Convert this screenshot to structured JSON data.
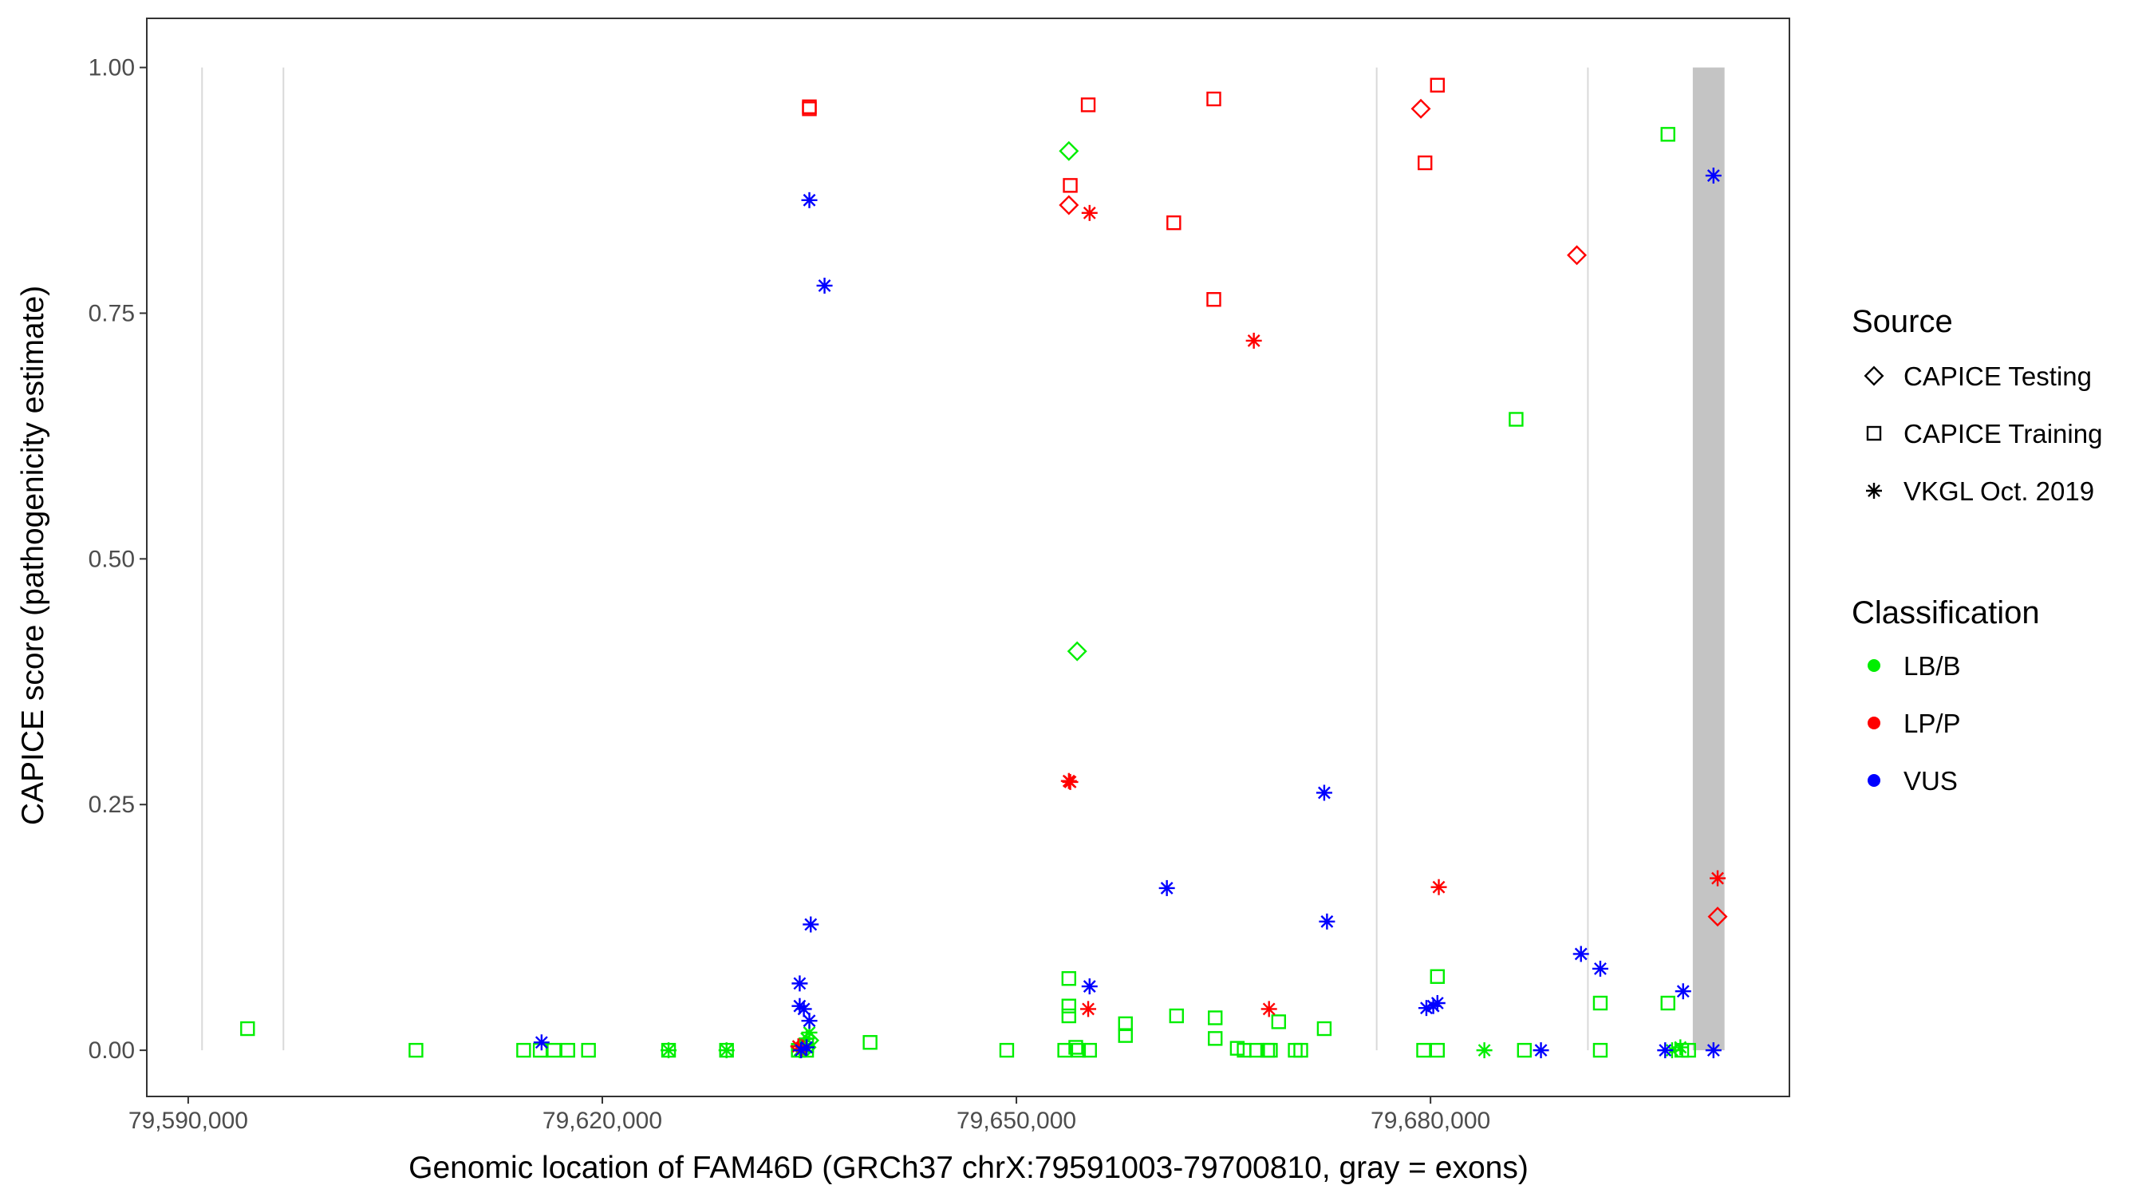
{
  "chart_data": {
    "type": "scatter",
    "title": "",
    "xlabel": "Genomic location of FAM46D (GRCh37 chrX:79591003-79700810, gray = exons)",
    "ylabel": "CAPICE score (pathogenicity estimate)",
    "xlim": [
      79587000,
      79706000
    ],
    "ylim": [
      -0.047,
      1.05
    ],
    "x_ticks": [
      79590000,
      79620000,
      79650000,
      79680000
    ],
    "x_tick_labels": [
      "79,590,000",
      "79,620,000",
      "79,650,000",
      "79,680,000"
    ],
    "y_ticks": [
      0,
      0.25,
      0.5,
      0.75,
      1.0
    ],
    "y_tick_labels": [
      "0.00",
      "0.25",
      "0.50",
      "0.75",
      "1.00"
    ],
    "grid": false,
    "exon_lines": [
      79591003,
      79596900,
      79676100,
      79691400
    ],
    "exon_band": [
      79699000,
      79701300
    ],
    "legend_placement": "right",
    "legend": {
      "source_title": "Source",
      "source_items": [
        {
          "label": "CAPICE Testing",
          "shape": "diamond"
        },
        {
          "label": "CAPICE Training",
          "shape": "square"
        },
        {
          "label": "VKGL Oct. 2019",
          "shape": "asterisk"
        }
      ],
      "classification_title": "Classification",
      "classification_items": [
        {
          "label": "LB/B",
          "color": "#00ee00"
        },
        {
          "label": "LP/P",
          "color": "#ff0000"
        },
        {
          "label": "VUS",
          "color": "#0000ff"
        }
      ]
    },
    "series": [
      {
        "source": "CAPICE Training",
        "classification": "LB/B",
        "points": [
          [
            79594300,
            0.022
          ],
          [
            79606500,
            0.0
          ],
          [
            79614300,
            0.0
          ],
          [
            79615500,
            0.0
          ],
          [
            79616500,
            0.0
          ],
          [
            79617500,
            0.0
          ],
          [
            79619000,
            0.0
          ],
          [
            79624800,
            0.0
          ],
          [
            79629000,
            0.0
          ],
          [
            79634200,
            0.0
          ],
          [
            79634800,
            0.0
          ],
          [
            79634800,
            0.005
          ],
          [
            79639400,
            0.008
          ],
          [
            79649300,
            0.0
          ],
          [
            79653500,
            0.0
          ],
          [
            79653800,
            0.073
          ],
          [
            79653800,
            0.045
          ],
          [
            79653800,
            0.035
          ],
          [
            79654300,
            0.003
          ],
          [
            79654500,
            0.0
          ],
          [
            79655300,
            0.0
          ],
          [
            79657900,
            0.027
          ],
          [
            79657900,
            0.015
          ],
          [
            79661600,
            0.035
          ],
          [
            79664400,
            0.033
          ],
          [
            79664400,
            0.012
          ],
          [
            79666000,
            0.002
          ],
          [
            79666500,
            0.0
          ],
          [
            79667400,
            0.0
          ],
          [
            79668200,
            0.0
          ],
          [
            79668400,
            0.0
          ],
          [
            79669000,
            0.029
          ],
          [
            79670200,
            0.0
          ],
          [
            79670600,
            0.0
          ],
          [
            79672300,
            0.022
          ],
          [
            79679500,
            0.0
          ],
          [
            79680500,
            0.075
          ],
          [
            79680500,
            0.0
          ],
          [
            79686200,
            0.642
          ],
          [
            79686800,
            0.0
          ],
          [
            79692300,
            0.048
          ],
          [
            79692300,
            0.0
          ],
          [
            79697200,
            0.048
          ],
          [
            79697200,
            0.932
          ],
          [
            79698200,
            0.0
          ],
          [
            79698700,
            0.0
          ]
        ]
      },
      {
        "source": "CAPICE Training",
        "classification": "LP/P",
        "points": [
          [
            79635000,
            0.96
          ],
          [
            79635000,
            0.958
          ],
          [
            79653900,
            0.88
          ],
          [
            79655200,
            0.962
          ],
          [
            79661400,
            0.842
          ],
          [
            79664300,
            0.968
          ],
          [
            79664300,
            0.764
          ],
          [
            79679600,
            0.903
          ],
          [
            79680500,
            0.982
          ]
        ]
      },
      {
        "source": "CAPICE Testing",
        "classification": "LB/B",
        "points": [
          [
            79653800,
            0.915
          ],
          [
            79654400,
            0.406
          ],
          [
            79634800,
            0.003
          ],
          [
            79635000,
            0.01
          ]
        ]
      },
      {
        "source": "CAPICE Testing",
        "classification": "LP/P",
        "points": [
          [
            79653800,
            0.86
          ],
          [
            79679300,
            0.958
          ],
          [
            79690600,
            0.809
          ],
          [
            79700800,
            0.136
          ],
          [
            79634400,
            0.003
          ]
        ]
      },
      {
        "source": "VKGL Oct. 2019",
        "classification": "LB/B",
        "points": [
          [
            79624800,
            0.0
          ],
          [
            79629000,
            0.0
          ],
          [
            79634300,
            0.0
          ],
          [
            79634600,
            0.005
          ],
          [
            79634800,
            0.012
          ],
          [
            79635000,
            0.018
          ],
          [
            79683900,
            0.0
          ],
          [
            79697500,
            0.0
          ],
          [
            79698100,
            0.003
          ]
        ]
      },
      {
        "source": "VKGL Oct. 2019",
        "classification": "LP/P",
        "points": [
          [
            79655300,
            0.852
          ],
          [
            79653800,
            0.274
          ],
          [
            79653900,
            0.273
          ],
          [
            79655200,
            0.042
          ],
          [
            79667200,
            0.722
          ],
          [
            79668300,
            0.042
          ],
          [
            79680600,
            0.166
          ],
          [
            79700800,
            0.175
          ],
          [
            79634200,
            0.004
          ]
        ]
      },
      {
        "source": "VKGL Oct. 2019",
        "classification": "VUS",
        "points": [
          [
            79635000,
            0.865
          ],
          [
            79636100,
            0.778
          ],
          [
            79635100,
            0.128
          ],
          [
            79634300,
            0.068
          ],
          [
            79634300,
            0.045
          ],
          [
            79634600,
            0.042
          ],
          [
            79635000,
            0.03
          ],
          [
            79634400,
            0.0
          ],
          [
            79634800,
            0.003
          ],
          [
            79615600,
            0.008
          ],
          [
            79655300,
            0.065
          ],
          [
            79660900,
            0.165
          ],
          [
            79672300,
            0.262
          ],
          [
            79672500,
            0.131
          ],
          [
            79679700,
            0.043
          ],
          [
            79680200,
            0.045
          ],
          [
            79680500,
            0.048
          ],
          [
            79688000,
            0.0
          ],
          [
            79690900,
            0.098
          ],
          [
            79692300,
            0.083
          ],
          [
            79697000,
            0.0
          ],
          [
            79698300,
            0.06
          ],
          [
            79700500,
            0.89
          ],
          [
            79700500,
            0.0
          ]
        ]
      }
    ]
  }
}
